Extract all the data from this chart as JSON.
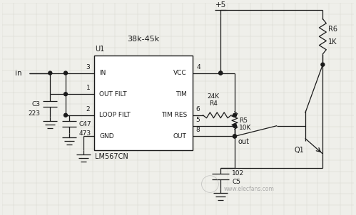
{
  "bg_color": "#efefea",
  "grid_color": "#d8d8d0",
  "line_color": "#1a1a1a",
  "ic_label": "U1",
  "ic_chip": "LM567CN",
  "freq_label": "38k-45k",
  "supply_label": "+5",
  "input_label": "in",
  "out_label": "out",
  "watermark": "www.elecfans.com"
}
